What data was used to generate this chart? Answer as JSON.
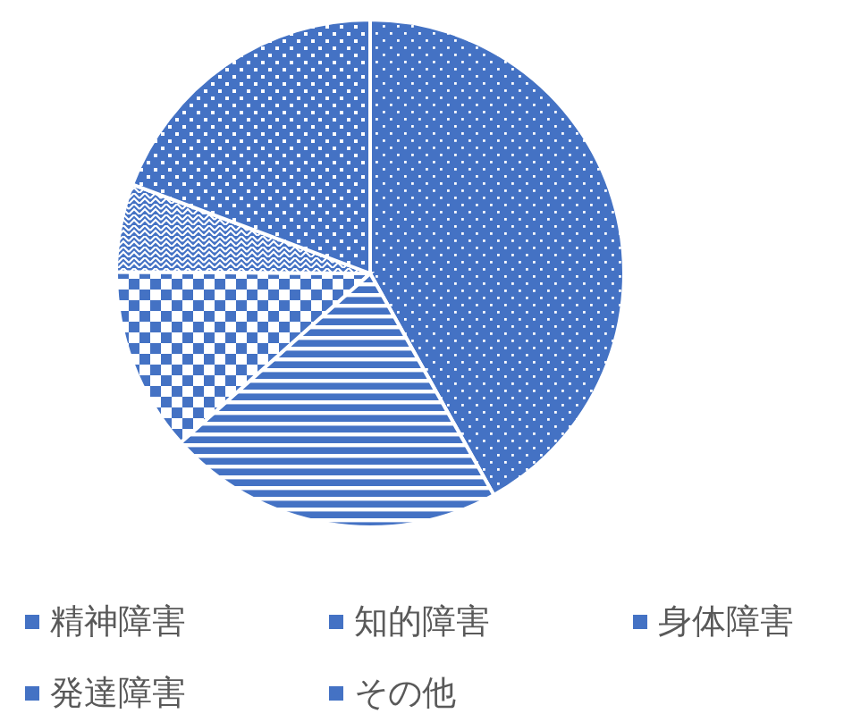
{
  "chart_data": {
    "type": "pie",
    "categories": [
      "精神障害",
      "知的障害",
      "身体障害",
      "発達障害",
      "その他"
    ],
    "values": [
      41.9,
      21.5,
      11.7,
      5.6,
      19.3
    ],
    "colors": [
      "#4472c4",
      "#4472c4",
      "#4472c4",
      "#4472c4",
      "#4472c4"
    ],
    "legend": "bottom"
  }
}
